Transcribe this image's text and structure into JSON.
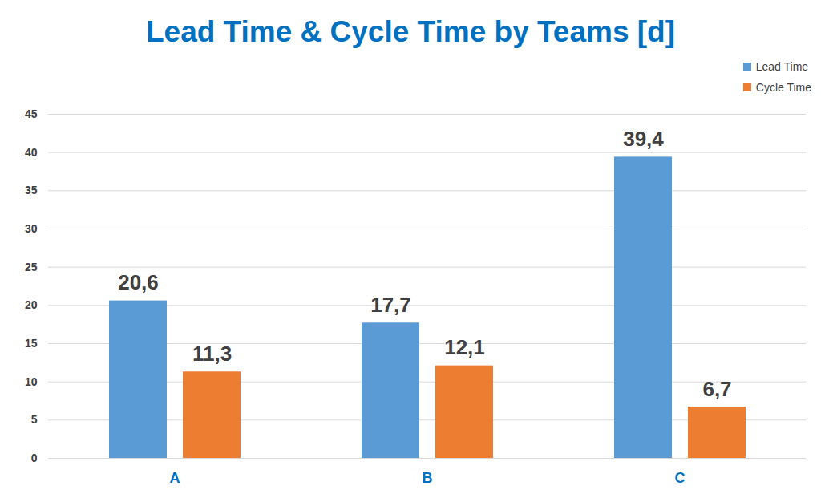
{
  "chart_data": {
    "type": "bar",
    "title": "Lead Time & Cycle Time by Teams [d]",
    "categories": [
      "A",
      "B",
      "C"
    ],
    "series": [
      {
        "name": "Lead Time",
        "color": "#5B9BD5",
        "values": [
          20.6,
          17.7,
          39.4
        ],
        "value_labels": [
          "20,6",
          "17,7",
          "39,4"
        ]
      },
      {
        "name": "Cycle Time",
        "color": "#ED7D31",
        "values": [
          11.3,
          12.1,
          6.7
        ],
        "value_labels": [
          "11,3",
          "12,1",
          "6,7"
        ]
      }
    ],
    "ylim": [
      0,
      45
    ],
    "yticks": [
      0,
      5,
      10,
      15,
      20,
      25,
      30,
      35,
      40,
      45
    ],
    "grid": true,
    "legend": "top-right",
    "data_labels": true
  }
}
